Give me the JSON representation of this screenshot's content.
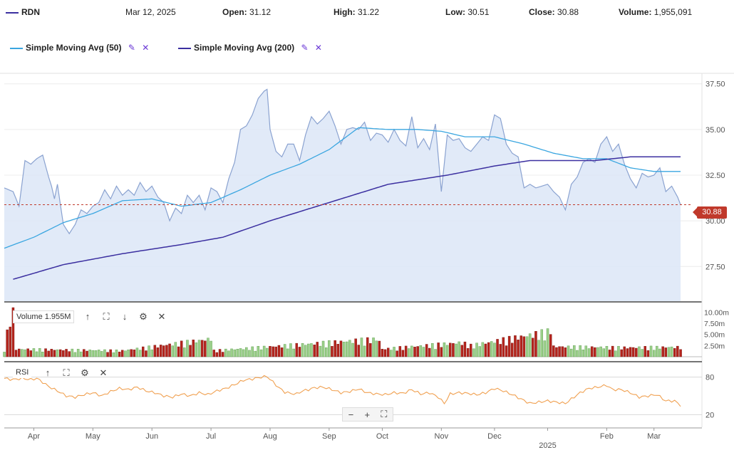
{
  "header": {
    "symbol": "RDN",
    "date": "Mar 12, 2025",
    "open_label": "Open:",
    "open_value": "31.12",
    "high_label": "High:",
    "high_value": "31.22",
    "low_label": "Low:",
    "low_value": "30.51",
    "close_label": "Close:",
    "close_value": "30.88",
    "volume_label": "Volume:",
    "volume_value": "1,955,091",
    "symbol_color": "#3b2fa0"
  },
  "legend": {
    "sma50_label": "Simple Moving Avg (50)",
    "sma200_label": "Simple Moving Avg (200)",
    "sma50_color": "#3aa6e0",
    "sma200_color": "#3b2fa0"
  },
  "volume_panel": {
    "label": "Volume 1.955M"
  },
  "rsi_panel": {
    "label": "RSI"
  },
  "zoom": {
    "minus": "−",
    "plus": "+",
    "fit": "⛶"
  },
  "price_badge": "30.88",
  "chart_data": {
    "type": "area",
    "title": "",
    "price_axis": {
      "ticks": [
        27.5,
        30.0,
        32.5,
        35.0,
        37.5
      ],
      "tick_labels": [
        "27.50",
        "30.00",
        "32.50",
        "35.00",
        "37.50"
      ],
      "ylim": [
        25.6,
        37.8
      ]
    },
    "volume_axis": {
      "ticks": [
        2.5,
        5.0,
        7.5,
        10.0
      ],
      "tick_labels": [
        "2.50m",
        "5.00m",
        "7.50m",
        "10.00m"
      ],
      "ylim": [
        0,
        11
      ]
    },
    "rsi_axis": {
      "ticks": [
        20,
        80
      ],
      "tick_labels": [
        "20",
        "80"
      ],
      "ylim": [
        0,
        100
      ]
    },
    "x_labels": [
      "Apr",
      "May",
      "Jun",
      "Jul",
      "Aug",
      "Sep",
      "Oct",
      "Nov",
      "Dec",
      "2025",
      "Feb",
      "Mar"
    ],
    "x_label_idx": [
      10,
      30,
      50,
      70,
      90,
      110,
      128,
      148,
      166,
      184,
      204,
      220
    ],
    "x_label_year": "2025",
    "n_days": 230,
    "last_close": 30.88,
    "close_anchors": [
      [
        0,
        31.8
      ],
      [
        3,
        31.6
      ],
      [
        5,
        30.8
      ],
      [
        7,
        33.3
      ],
      [
        9,
        33.1
      ],
      [
        11,
        33.4
      ],
      [
        13,
        33.6
      ],
      [
        15,
        32.4
      ],
      [
        16,
        31.9
      ],
      [
        17,
        31.2
      ],
      [
        18,
        32.0
      ],
      [
        20,
        29.8
      ],
      [
        22,
        29.3
      ],
      [
        24,
        29.8
      ],
      [
        26,
        30.6
      ],
      [
        28,
        30.4
      ],
      [
        30,
        30.8
      ],
      [
        32,
        31.0
      ],
      [
        34,
        31.7
      ],
      [
        36,
        31.2
      ],
      [
        38,
        31.9
      ],
      [
        40,
        31.4
      ],
      [
        42,
        31.7
      ],
      [
        44,
        31.4
      ],
      [
        46,
        32.1
      ],
      [
        48,
        31.6
      ],
      [
        50,
        31.9
      ],
      [
        52,
        31.3
      ],
      [
        54,
        31.0
      ],
      [
        56,
        30.0
      ],
      [
        58,
        30.7
      ],
      [
        60,
        30.4
      ],
      [
        62,
        31.4
      ],
      [
        64,
        31.0
      ],
      [
        66,
        31.4
      ],
      [
        68,
        30.6
      ],
      [
        70,
        31.8
      ],
      [
        72,
        31.6
      ],
      [
        74,
        31.0
      ],
      [
        76,
        32.3
      ],
      [
        78,
        33.2
      ],
      [
        80,
        35.0
      ],
      [
        82,
        35.2
      ],
      [
        84,
        35.8
      ],
      [
        86,
        36.7
      ],
      [
        88,
        37.1
      ],
      [
        89,
        37.2
      ],
      [
        90,
        35.0
      ],
      [
        92,
        33.8
      ],
      [
        94,
        33.5
      ],
      [
        96,
        34.2
      ],
      [
        98,
        34.2
      ],
      [
        100,
        33.3
      ],
      [
        102,
        34.7
      ],
      [
        104,
        35.7
      ],
      [
        106,
        35.3
      ],
      [
        108,
        35.6
      ],
      [
        110,
        36.0
      ],
      [
        112,
        35.2
      ],
      [
        114,
        34.2
      ],
      [
        116,
        35.0
      ],
      [
        118,
        35.1
      ],
      [
        120,
        35.0
      ],
      [
        122,
        35.4
      ],
      [
        124,
        34.4
      ],
      [
        126,
        34.8
      ],
      [
        128,
        34.7
      ],
      [
        130,
        34.3
      ],
      [
        132,
        35.0
      ],
      [
        134,
        34.4
      ],
      [
        136,
        34.1
      ],
      [
        138,
        35.7
      ],
      [
        140,
        34.0
      ],
      [
        142,
        34.5
      ],
      [
        144,
        33.9
      ],
      [
        146,
        35.3
      ],
      [
        148,
        31.6
      ],
      [
        150,
        34.7
      ],
      [
        152,
        34.4
      ],
      [
        154,
        34.5
      ],
      [
        156,
        34.0
      ],
      [
        158,
        33.8
      ],
      [
        160,
        34.2
      ],
      [
        162,
        34.6
      ],
      [
        164,
        34.4
      ],
      [
        166,
        35.8
      ],
      [
        168,
        35.6
      ],
      [
        170,
        34.2
      ],
      [
        172,
        33.7
      ],
      [
        174,
        33.5
      ],
      [
        176,
        31.8
      ],
      [
        178,
        32.0
      ],
      [
        180,
        31.8
      ],
      [
        182,
        31.9
      ],
      [
        184,
        32.0
      ],
      [
        186,
        31.6
      ],
      [
        188,
        31.3
      ],
      [
        190,
        30.6
      ],
      [
        192,
        32.0
      ],
      [
        194,
        32.4
      ],
      [
        196,
        33.2
      ],
      [
        198,
        33.4
      ],
      [
        200,
        33.2
      ],
      [
        202,
        34.2
      ],
      [
        204,
        34.6
      ],
      [
        206,
        33.8
      ],
      [
        208,
        34.2
      ],
      [
        210,
        33.1
      ],
      [
        212,
        32.3
      ],
      [
        214,
        31.8
      ],
      [
        216,
        32.6
      ],
      [
        218,
        32.4
      ],
      [
        220,
        32.5
      ],
      [
        222,
        32.9
      ],
      [
        224,
        31.6
      ],
      [
        226,
        31.9
      ],
      [
        228,
        31.3
      ],
      [
        229,
        30.88
      ]
    ],
    "sma50_anchors": [
      [
        0,
        28.5
      ],
      [
        10,
        29.1
      ],
      [
        20,
        29.9
      ],
      [
        30,
        30.4
      ],
      [
        40,
        31.1
      ],
      [
        50,
        31.2
      ],
      [
        60,
        30.8
      ],
      [
        70,
        31.0
      ],
      [
        80,
        31.7
      ],
      [
        90,
        32.5
      ],
      [
        100,
        33.1
      ],
      [
        110,
        33.9
      ],
      [
        120,
        35.1
      ],
      [
        130,
        35.0
      ],
      [
        140,
        35.0
      ],
      [
        148,
        34.9
      ],
      [
        156,
        34.6
      ],
      [
        166,
        34.6
      ],
      [
        176,
        34.2
      ],
      [
        186,
        33.7
      ],
      [
        196,
        33.4
      ],
      [
        204,
        33.4
      ],
      [
        212,
        32.9
      ],
      [
        220,
        32.7
      ],
      [
        229,
        32.7
      ]
    ],
    "sma200_anchors": [
      [
        3,
        26.8
      ],
      [
        20,
        27.6
      ],
      [
        40,
        28.2
      ],
      [
        60,
        28.7
      ],
      [
        74,
        29.1
      ],
      [
        90,
        30.0
      ],
      [
        110,
        31.0
      ],
      [
        130,
        32.0
      ],
      [
        150,
        32.5
      ],
      [
        166,
        33.0
      ],
      [
        178,
        33.3
      ],
      [
        190,
        33.3
      ],
      [
        200,
        33.3
      ],
      [
        212,
        33.5
      ],
      [
        229,
        33.5
      ]
    ],
    "rsi_anchors": [
      [
        0,
        78
      ],
      [
        3,
        76
      ],
      [
        6,
        78
      ],
      [
        9,
        76
      ],
      [
        11,
        78
      ],
      [
        13,
        72
      ],
      [
        15,
        65
      ],
      [
        18,
        58
      ],
      [
        21,
        50
      ],
      [
        24,
        48
      ],
      [
        27,
        52
      ],
      [
        30,
        55
      ],
      [
        33,
        50
      ],
      [
        36,
        57
      ],
      [
        39,
        62
      ],
      [
        42,
        60
      ],
      [
        45,
        64
      ],
      [
        48,
        58
      ],
      [
        51,
        55
      ],
      [
        54,
        50
      ],
      [
        57,
        48
      ],
      [
        60,
        53
      ],
      [
        63,
        50
      ],
      [
        66,
        55
      ],
      [
        69,
        52
      ],
      [
        72,
        58
      ],
      [
        75,
        62
      ],
      [
        78,
        68
      ],
      [
        81,
        75
      ],
      [
        84,
        77
      ],
      [
        87,
        80
      ],
      [
        89,
        81
      ],
      [
        91,
        72
      ],
      [
        93,
        63
      ],
      [
        95,
        56
      ],
      [
        97,
        54
      ],
      [
        99,
        53
      ],
      [
        101,
        58
      ],
      [
        103,
        60
      ],
      [
        105,
        63
      ],
      [
        108,
        64
      ],
      [
        111,
        60
      ],
      [
        114,
        55
      ],
      [
        117,
        57
      ],
      [
        120,
        61
      ],
      [
        123,
        55
      ],
      [
        126,
        53
      ],
      [
        129,
        52
      ],
      [
        132,
        55
      ],
      [
        135,
        54
      ],
      [
        138,
        60
      ],
      [
        141,
        53
      ],
      [
        144,
        55
      ],
      [
        147,
        48
      ],
      [
        149,
        38
      ],
      [
        151,
        53
      ],
      [
        154,
        55
      ],
      [
        157,
        54
      ],
      [
        160,
        52
      ],
      [
        163,
        55
      ],
      [
        166,
        62
      ],
      [
        169,
        58
      ],
      [
        172,
        52
      ],
      [
        175,
        45
      ],
      [
        178,
        38
      ],
      [
        181,
        40
      ],
      [
        184,
        42
      ],
      [
        187,
        40
      ],
      [
        190,
        38
      ],
      [
        192,
        45
      ],
      [
        195,
        55
      ],
      [
        198,
        62
      ],
      [
        201,
        64
      ],
      [
        204,
        67
      ],
      [
        206,
        60
      ],
      [
        209,
        60
      ],
      [
        212,
        55
      ],
      [
        215,
        48
      ],
      [
        218,
        50
      ],
      [
        221,
        52
      ],
      [
        224,
        42
      ],
      [
        227,
        42
      ],
      [
        229,
        35
      ]
    ],
    "volume_anchors": [
      [
        0,
        1.5
      ],
      [
        3,
        11.0
      ],
      [
        4,
        1.5
      ],
      [
        40,
        1.2
      ],
      [
        70,
        3.5
      ],
      [
        71,
        1.2
      ],
      [
        127,
        3.5
      ],
      [
        128,
        1.5
      ],
      [
        155,
        2.8
      ],
      [
        158,
        2.2
      ],
      [
        185,
        5.0
      ],
      [
        186,
        2.0
      ],
      [
        210,
        1.8
      ],
      [
        229,
        1.9
      ]
    ],
    "colors": {
      "area": "#dce6f7",
      "line": "#8aa2d0",
      "sma50": "#3aa6e0",
      "sma200": "#3b2fa0",
      "rsi": "#f0a050",
      "vol_up": "#9bd08a",
      "vol_down": "#b5241c",
      "badge": "#c0392b"
    }
  }
}
